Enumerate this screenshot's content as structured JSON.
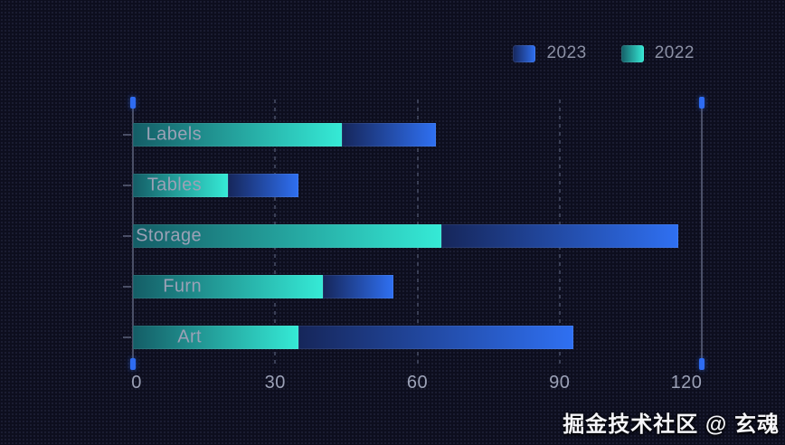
{
  "watermark": "掘金技术社区 @ 玄魂",
  "colors": {
    "background": "#0d0e1e",
    "text_muted": "#9ba1b6",
    "legend_text": "#8b90a4",
    "axis_line": "#4a4f66",
    "gridline": "#3a3f55",
    "axis_cap_blue": "#2e6cf2",
    "teal_dark": "#145d66",
    "teal_bright": "#35ead6",
    "blue_dark": "#16265a",
    "blue_bright": "#2f70f2"
  },
  "legend": {
    "items": [
      {
        "label": "2023",
        "series": "2023"
      },
      {
        "label": "2022",
        "series": "2022"
      }
    ]
  },
  "chart_data": {
    "type": "bar",
    "orientation": "horizontal",
    "stacked": true,
    "title": "",
    "xlabel": "",
    "ylabel": "",
    "categories": [
      "Labels",
      "Tables",
      "Storage",
      "Furn",
      "Art"
    ],
    "series": [
      {
        "name": "2022",
        "values": [
          44,
          20,
          65,
          40,
          35
        ],
        "gradient": [
          "#145d66",
          "#35ead6"
        ]
      },
      {
        "name": "2023",
        "values": [
          20,
          15,
          50,
          15,
          58
        ],
        "gradient": [
          "#16265a",
          "#2f70f2"
        ]
      }
    ],
    "stack_totals": [
      64,
      35,
      115,
      55,
      93
    ],
    "stack_order": [
      "2022",
      "2023"
    ],
    "x_ticks": [
      0,
      30,
      60,
      90,
      120
    ],
    "xlim": [
      0,
      120
    ],
    "dashed_gridlines_at": [
      30,
      60,
      90
    ],
    "boundary_lines_at": [
      0,
      120
    ],
    "grid": true,
    "legend_position": "top-right"
  }
}
